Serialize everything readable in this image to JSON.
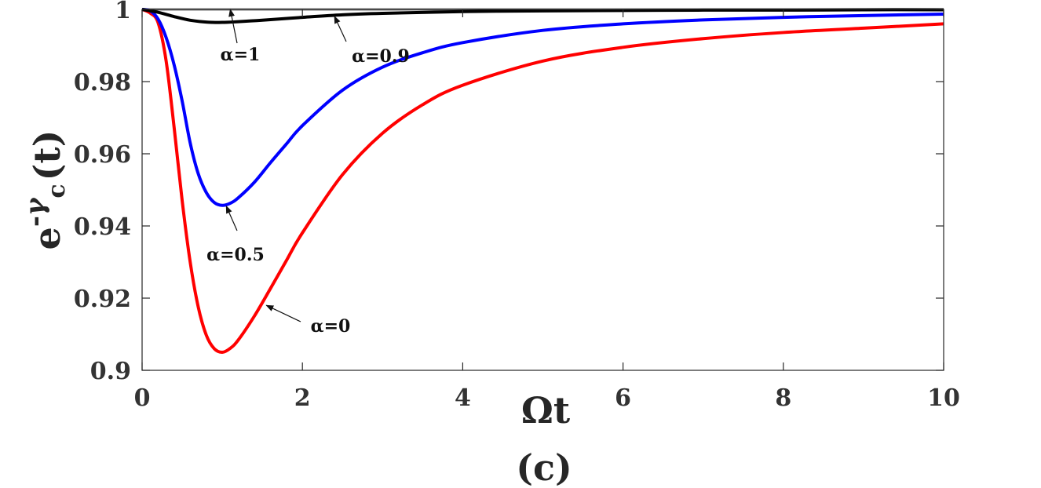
{
  "chart_data": {
    "type": "line",
    "xlabel": "Ωt",
    "ylabel": {
      "base": "e",
      "sup_prefix": "-",
      "sup_greek": "γ",
      "sub": "c",
      "arg": "(t)"
    },
    "caption": "(c)",
    "xlim": [
      0,
      10
    ],
    "ylim": [
      0.9,
      1.0
    ],
    "xticks": [
      0,
      2,
      4,
      6,
      8,
      10
    ],
    "xtick_labels": [
      "0",
      "2",
      "4",
      "6",
      "8",
      "10"
    ],
    "yticks": [
      0.9,
      0.92,
      0.94,
      0.96,
      0.98,
      1.0
    ],
    "ytick_labels": [
      "0.9",
      "0.92",
      "0.94",
      "0.96",
      "0.98",
      "1"
    ],
    "grid": false,
    "series": [
      {
        "label": "α=0",
        "color": "#ff0000",
        "x": [
          0,
          0.1,
          0.2,
          0.3,
          0.4,
          0.5,
          0.6,
          0.7,
          0.8,
          0.9,
          1.0,
          1.1,
          1.2,
          1.4,
          1.6,
          1.8,
          2.0,
          2.5,
          3.0,
          3.5,
          4.0,
          5.0,
          6.0,
          7.0,
          8.0,
          9.0,
          10.0
        ],
        "y": [
          1.0,
          0.999,
          0.9963,
          0.9857,
          0.9672,
          0.947,
          0.93,
          0.9176,
          0.9098,
          0.906,
          0.905,
          0.9061,
          0.9084,
          0.915,
          0.9226,
          0.9304,
          0.9381,
          0.9542,
          0.9657,
          0.9736,
          0.979,
          0.9857,
          0.9895,
          0.9919,
          0.9936,
          0.9948,
          0.996
        ]
      },
      {
        "label": "α=0.5",
        "color": "#0000ff",
        "x": [
          0,
          0.1,
          0.2,
          0.3,
          0.4,
          0.5,
          0.6,
          0.7,
          0.8,
          0.9,
          1.0,
          1.1,
          1.2,
          1.4,
          1.6,
          1.8,
          2.0,
          2.5,
          3.0,
          3.5,
          4.0,
          5.0,
          6.0,
          7.0,
          8.0,
          9.0,
          10.0
        ],
        "y": [
          1.0,
          0.9996,
          0.9973,
          0.9922,
          0.9846,
          0.9746,
          0.963,
          0.9545,
          0.9493,
          0.9465,
          0.9457,
          0.9463,
          0.9478,
          0.9521,
          0.9575,
          0.9627,
          0.9678,
          0.9776,
          0.984,
          0.988,
          0.9908,
          0.9942,
          0.996,
          0.9971,
          0.9978,
          0.9983,
          0.9987
        ]
      },
      {
        "label": "α=0.9",
        "color": "#000000",
        "x": [
          0,
          0.2,
          0.4,
          0.6,
          0.8,
          1.0,
          1.2,
          1.5,
          2.0,
          2.5,
          3.0,
          4.0,
          5.0,
          6.0,
          7.0,
          8.0,
          9.0,
          10.0
        ],
        "y": [
          1.0,
          0.9992,
          0.998,
          0.997,
          0.9965,
          0.9964,
          0.9966,
          0.997,
          0.9978,
          0.9985,
          0.9989,
          0.9994,
          0.9996,
          0.9997,
          0.9998,
          0.9998,
          0.9999,
          0.9999
        ]
      },
      {
        "label": "α=1",
        "color": "#808080",
        "x": [
          0,
          10
        ],
        "y": [
          1.0,
          1.0
        ]
      }
    ],
    "annotations": [
      {
        "text": "α=1",
        "arrow_to": [
          1.1,
          1.0
        ]
      },
      {
        "text": "α=0.9",
        "arrow_to": [
          2.4,
          0.9981
        ]
      },
      {
        "text": "α=0.5",
        "arrow_to": [
          1.05,
          0.9455
        ]
      },
      {
        "text": "α=0",
        "arrow_to": [
          1.55,
          0.918
        ]
      }
    ]
  }
}
